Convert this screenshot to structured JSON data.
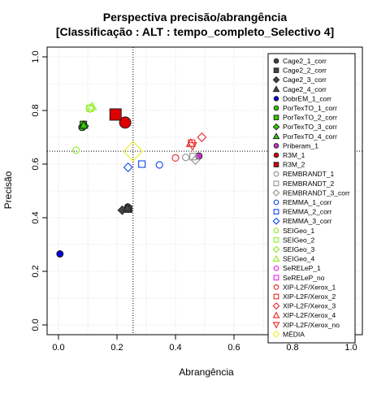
{
  "chart_data": {
    "type": "scatter",
    "title_lines": [
      "Perspectiva precisão/abrangência",
      "[Classificação : ALT : tempo_completo_Selectivo 4]"
    ],
    "xlabel": "Abrangência",
    "ylabel": "Precisão",
    "xlim": [
      0,
      1
    ],
    "ylim": [
      0,
      1
    ],
    "x_ticks": [
      "0.0",
      "0.2",
      "0.4",
      "0.6",
      "0.8",
      "1.0"
    ],
    "y_ticks": [
      "0.0",
      "0.2",
      "0.4",
      "0.6",
      "0.8",
      "1.0"
    ],
    "grid": true,
    "grid_style": "dotted",
    "legend_position": "right",
    "reference_lines": {
      "x": 0.255,
      "y": 0.648
    },
    "series": [
      {
        "name": "Cage2_1_corr",
        "marker": "circle",
        "color": "#444444",
        "fill": true,
        "x": [
          0.237
        ],
        "y": [
          0.44
        ]
      },
      {
        "name": "Cage2_2_corr",
        "marker": "square",
        "color": "#444444",
        "fill": true,
        "x": [
          0.24
        ],
        "y": [
          0.432
        ]
      },
      {
        "name": "Cage2_3_corr",
        "marker": "diamond",
        "color": "#444444",
        "fill": true,
        "x": [
          0.218
        ],
        "y": [
          0.428
        ]
      },
      {
        "name": "Cage2_4_corr",
        "marker": "triangle",
        "color": "#444444",
        "fill": true,
        "x": [
          0.236
        ],
        "y": [
          0.437
        ]
      },
      {
        "name": "DobrEM_1_corr",
        "marker": "circle",
        "color": "#0000dd",
        "fill": true,
        "x": [
          0.005
        ],
        "y": [
          0.265
        ]
      },
      {
        "name": "PorTexTO_1_corr",
        "marker": "circle",
        "color": "#33cc00",
        "fill": true,
        "x": [
          0.08
        ],
        "y": [
          0.737
        ]
      },
      {
        "name": "PorTexTO_2_corr",
        "marker": "square",
        "color": "#33cc00",
        "fill": true,
        "x": [
          0.085
        ],
        "y": [
          0.748
        ]
      },
      {
        "name": "PorTexTO_3_corr",
        "marker": "diamond",
        "color": "#33cc00",
        "fill": true,
        "x": [
          0.088
        ],
        "y": [
          0.742
        ]
      },
      {
        "name": "PorTexTO_4_corr",
        "marker": "triangle",
        "color": "#33cc00",
        "fill": true,
        "x": [
          0.086
        ],
        "y": [
          0.746
        ]
      },
      {
        "name": "Priberam_1",
        "marker": "circle",
        "color": "#cc33cc",
        "fill": true,
        "x": [
          0.48
        ],
        "y": [
          0.63
        ]
      },
      {
        "name": "R3M_1",
        "marker": "circle",
        "color": "#dd0000",
        "fill": true,
        "size": "large",
        "x": [
          0.228
        ],
        "y": [
          0.755
        ]
      },
      {
        "name": "R3M_2",
        "marker": "square",
        "color": "#dd0000",
        "fill": true,
        "size": "large",
        "x": [
          0.195
        ],
        "y": [
          0.785
        ]
      },
      {
        "name": "REMBRANDT_1",
        "marker": "circle",
        "color": "#999999",
        "fill": false,
        "x": [
          0.435
        ],
        "y": [
          0.625
        ]
      },
      {
        "name": "REMBRANDT_2",
        "marker": "square",
        "color": "#999999",
        "fill": false,
        "x": [
          0.46
        ],
        "y": [
          0.628
        ]
      },
      {
        "name": "REMBRANDT_3_corr",
        "marker": "diamond",
        "color": "#999999",
        "fill": false,
        "x": [
          0.468
        ],
        "y": [
          0.615
        ]
      },
      {
        "name": "REMMA_1_corr",
        "marker": "circle",
        "color": "#2255ee",
        "fill": false,
        "x": [
          0.345
        ],
        "y": [
          0.597
        ]
      },
      {
        "name": "REMMA_2_corr",
        "marker": "square",
        "color": "#2255ee",
        "fill": false,
        "x": [
          0.285
        ],
        "y": [
          0.6
        ]
      },
      {
        "name": "REMMA_3_corr",
        "marker": "diamond",
        "color": "#2255ee",
        "fill": false,
        "x": [
          0.238
        ],
        "y": [
          0.588
        ]
      },
      {
        "name": "SEIGeo_1",
        "marker": "circle",
        "color": "#99ee33",
        "fill": false,
        "x": [
          0.06
        ],
        "y": [
          0.652
        ]
      },
      {
        "name": "SEIGeo_2",
        "marker": "square",
        "color": "#99ee33",
        "fill": false,
        "x": [
          0.108
        ],
        "y": [
          0.808
        ]
      },
      {
        "name": "SEIGeo_3",
        "marker": "diamond",
        "color": "#99ee33",
        "fill": false,
        "x": [
          0.108
        ],
        "y": [
          0.808
        ]
      },
      {
        "name": "SEIGeo_4",
        "marker": "triangle",
        "color": "#99ee33",
        "fill": false,
        "x": [
          0.115
        ],
        "y": [
          0.815
        ]
      },
      {
        "name": "SeRELeP_1",
        "marker": "circle",
        "color": "#ee33ee",
        "fill": false,
        "x": [],
        "y": []
      },
      {
        "name": "SeRELeP_no",
        "marker": "square",
        "color": "#ee33ee",
        "fill": false,
        "x": [],
        "y": []
      },
      {
        "name": "XIP-L2F/Xerox_1",
        "marker": "circle",
        "color": "#ee3333",
        "fill": false,
        "x": [
          0.4
        ],
        "y": [
          0.623
        ]
      },
      {
        "name": "XIP-L2F/Xerox_2",
        "marker": "square",
        "color": "#ee3333",
        "fill": false,
        "x": [
          0.455
        ],
        "y": [
          0.678
        ]
      },
      {
        "name": "XIP-L2F/Xerox_3",
        "marker": "diamond",
        "color": "#ee3333",
        "fill": false,
        "x": [
          0.49
        ],
        "y": [
          0.7
        ]
      },
      {
        "name": "XIP-L2F/Xerox_4",
        "marker": "triangle",
        "color": "#ee3333",
        "fill": false,
        "x": [
          0.452
        ],
        "y": [
          0.678
        ]
      },
      {
        "name": "XIP-L2F/Xerox_no",
        "marker": "triangle-down",
        "color": "#ee3333",
        "fill": false,
        "x": [
          0.458
        ],
        "y": [
          0.668
        ]
      },
      {
        "name": "MÉDIA",
        "marker": "diamond",
        "color": "#eeee33",
        "fill": false,
        "size": "large",
        "x": [
          0.255
        ],
        "y": [
          0.648
        ]
      }
    ]
  }
}
